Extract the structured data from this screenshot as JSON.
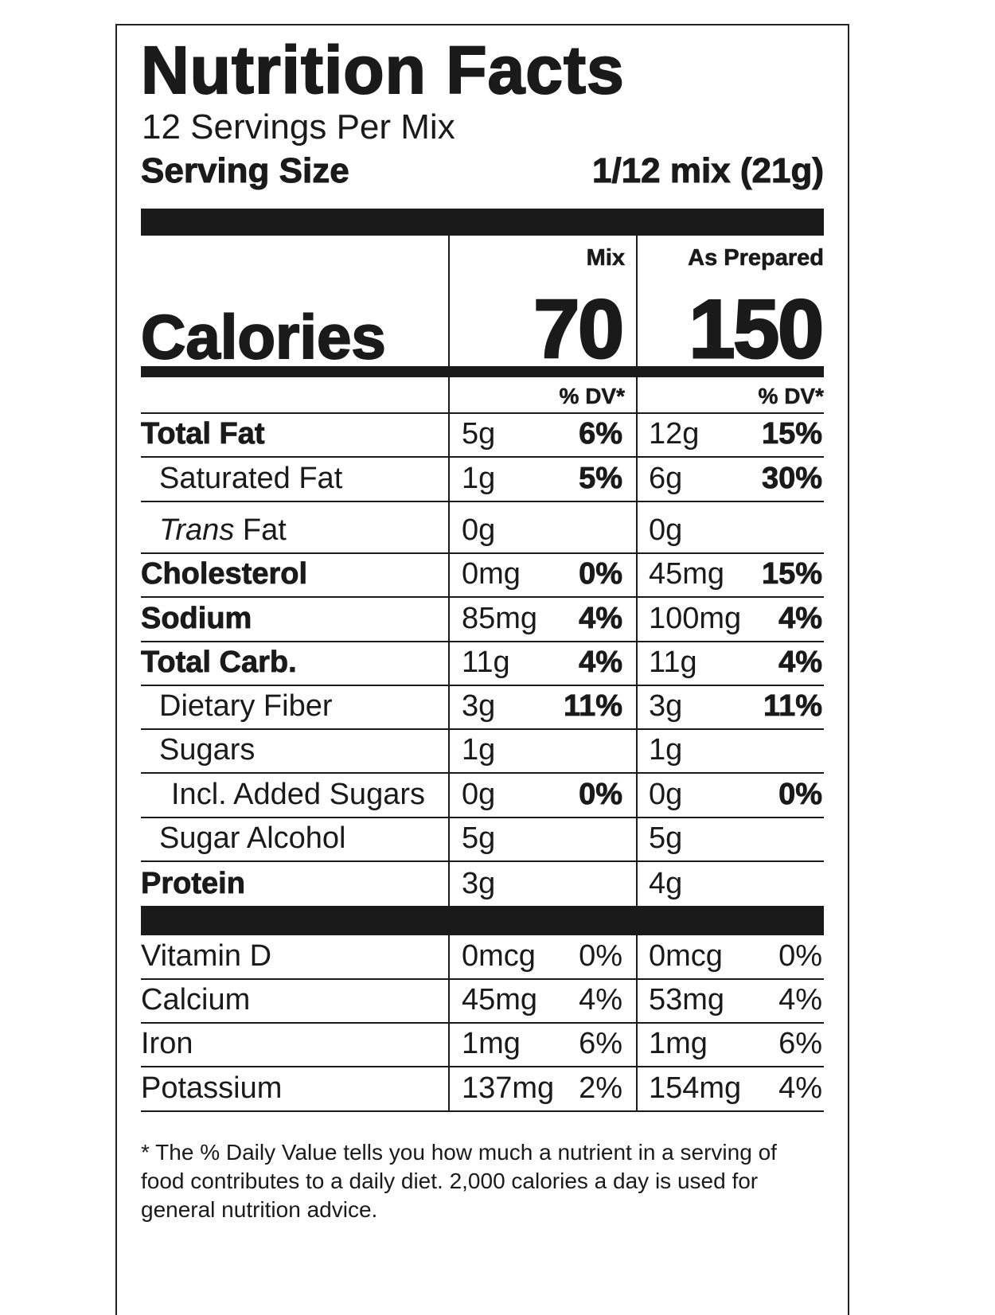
{
  "title": "Nutrition Facts",
  "servings_per": "12 Servings Per Mix",
  "serving_size_label": "Serving Size",
  "serving_size_value": "1/12 mix (21g)",
  "columns": {
    "mix": "Mix",
    "prepared": "As Prepared"
  },
  "calories": {
    "label": "Calories",
    "mix": "70",
    "prepared": "150"
  },
  "dv_header": {
    "mix": "% DV*",
    "prepared": "% DV*"
  },
  "nutrients": [
    {
      "label": "Total Fat",
      "bold": true,
      "indent": 0,
      "mix": "5g",
      "mix_dv": "6%",
      "prep": "12g",
      "prep_dv": "15%"
    },
    {
      "label": "Saturated Fat",
      "bold": false,
      "indent": 1,
      "mix": "1g",
      "mix_dv": "5%",
      "prep": "6g",
      "prep_dv": "30%"
    },
    {
      "label": "Fat",
      "italic_prefix": "Trans",
      "bold": false,
      "indent": 1,
      "mix": "0g",
      "mix_dv": "",
      "prep": "0g",
      "prep_dv": ""
    },
    {
      "label": "Cholesterol",
      "bold": true,
      "indent": 0,
      "mix": "0mg",
      "mix_dv": "0%",
      "prep": "45mg",
      "prep_dv": "15%"
    },
    {
      "label": "Sodium",
      "bold": true,
      "indent": 0,
      "mix": "85mg",
      "mix_dv": "4%",
      "prep": "100mg",
      "prep_dv": "4%"
    },
    {
      "label": "Total Carb.",
      "bold": true,
      "indent": 0,
      "mix": "11g",
      "mix_dv": "4%",
      "prep": "11g",
      "prep_dv": "4%"
    },
    {
      "label": "Dietary Fiber",
      "bold": false,
      "indent": 1,
      "mix": "3g",
      "mix_dv": "11%",
      "prep": "3g",
      "prep_dv": "11%"
    },
    {
      "label": "Sugars",
      "bold": false,
      "indent": 1,
      "mix": "1g",
      "mix_dv": "",
      "prep": "1g",
      "prep_dv": ""
    },
    {
      "label": "Incl. Added Sugars",
      "bold": false,
      "indent": 2,
      "mix": "0g",
      "mix_dv": "0%",
      "prep": "0g",
      "prep_dv": "0%"
    },
    {
      "label": "Sugar Alcohol",
      "bold": false,
      "indent": 1,
      "mix": "5g",
      "mix_dv": "",
      "prep": "5g",
      "prep_dv": ""
    },
    {
      "label": "Protein",
      "bold": true,
      "indent": 0,
      "mix": "3g",
      "mix_dv": "",
      "prep": "4g",
      "prep_dv": ""
    }
  ],
  "vitamins": [
    {
      "label": "Vitamin D",
      "mix": "0mcg",
      "mix_dv": "0%",
      "prep": "0mcg",
      "prep_dv": "0%"
    },
    {
      "label": "Calcium",
      "mix": "45mg",
      "mix_dv": "4%",
      "prep": "53mg",
      "prep_dv": "4%"
    },
    {
      "label": "Iron",
      "mix": "1mg",
      "mix_dv": "6%",
      "prep": "1mg",
      "prep_dv": "6%"
    },
    {
      "label": "Potassium",
      "mix": "137mg",
      "mix_dv": "2%",
      "prep": "154mg",
      "prep_dv": "4%"
    }
  ],
  "footnote": "* The % Daily Value tells you how much a nutrient in a serving of food contributes to a daily diet. 2,000 calories a day is used for general nutrition advice."
}
